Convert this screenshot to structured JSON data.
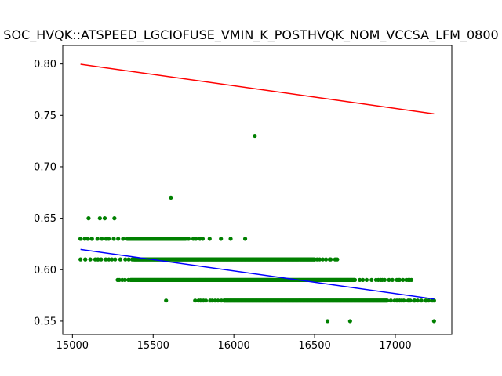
{
  "chart_data": {
    "type": "scatter",
    "title": "SOC_HVQK::ATSPEED_LGCIOFUSE_VMIN_K_POSTHVQK_NOM_VCCSA_LFM_0800",
    "xlabel": "",
    "ylabel": "",
    "xlim": [
      14940,
      17350
    ],
    "ylim": [
      0.537,
      0.818
    ],
    "grid": false,
    "x_ticks": [
      15000,
      15500,
      16000,
      16500,
      17000
    ],
    "x_tick_labels": [
      "15000",
      "15500",
      "16000",
      "16500",
      "17000"
    ],
    "y_ticks": [
      0.55,
      0.6,
      0.65,
      0.7,
      0.75,
      0.8
    ],
    "y_tick_labels": [
      "0.55",
      "0.60",
      "0.65",
      "0.70",
      "0.75",
      "0.80"
    ],
    "colors": {
      "points": "#008000",
      "upper_line": "#ff0000",
      "fit_line": "#0000ff"
    },
    "series": [
      {
        "kind": "points",
        "bands": [
          {
            "y": 0.63,
            "x_from": 15050,
            "x_to": 15810,
            "dense_from": 15340,
            "dense_to": 15700
          },
          {
            "y": 0.61,
            "x_from": 15050,
            "x_to": 16640,
            "dense_from": 15380,
            "dense_to": 16500
          },
          {
            "y": 0.59,
            "x_from": 15280,
            "x_to": 17100,
            "dense_from": 15360,
            "dense_to": 16750
          },
          {
            "y": 0.57,
            "x_from": 15760,
            "x_to": 17240,
            "dense_from": 15940,
            "dense_to": 16950
          }
        ],
        "points": [
          [
            15050,
            0.63
          ],
          [
            15080,
            0.61
          ],
          [
            15100,
            0.65
          ],
          [
            15170,
            0.65
          ],
          [
            15260,
            0.65
          ],
          [
            15200,
            0.65
          ],
          [
            15120,
            0.63
          ],
          [
            15160,
            0.61
          ],
          [
            15850,
            0.63
          ],
          [
            15920,
            0.63
          ],
          [
            16070,
            0.63
          ],
          [
            15980,
            0.63
          ],
          [
            16130,
            0.73
          ],
          [
            15610,
            0.67
          ],
          [
            15580,
            0.57
          ],
          [
            16580,
            0.55
          ],
          [
            16720,
            0.55
          ],
          [
            17240,
            0.55
          ],
          [
            16910,
            0.59
          ],
          [
            17020,
            0.59
          ],
          [
            17080,
            0.59
          ],
          [
            17100,
            0.59
          ],
          [
            16600,
            0.61
          ],
          [
            16640,
            0.61
          ],
          [
            17120,
            0.57
          ],
          [
            17190,
            0.57
          ],
          [
            17240,
            0.57
          ],
          [
            17010,
            0.57
          ],
          [
            17040,
            0.57
          ],
          [
            15290,
            0.59
          ]
        ]
      },
      {
        "kind": "line",
        "x": [
          15050,
          17240
        ],
        "y": [
          0.7997,
          0.7515
        ]
      },
      {
        "kind": "line",
        "x": [
          15050,
          17240
        ],
        "y": [
          0.6197,
          0.5715
        ]
      }
    ]
  }
}
